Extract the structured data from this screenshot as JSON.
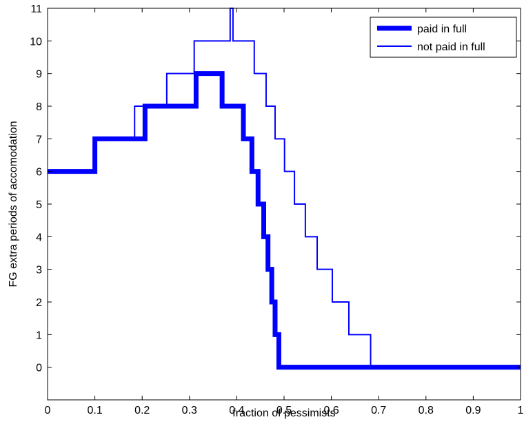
{
  "chart_data": {
    "type": "line",
    "title": "",
    "xlabel": "fraction of pessimists",
    "ylabel": "FG extra periods of accomodation",
    "xlim": [
      0,
      1
    ],
    "ylim": [
      -1,
      11
    ],
    "xticks": [
      0,
      0.1,
      0.2,
      0.3,
      0.4,
      0.5,
      0.6,
      0.7,
      0.8,
      0.9,
      1
    ],
    "xtick_labels": [
      "0",
      "0.1",
      "0.2",
      "0.3",
      "0.4",
      "0.5",
      "0.6",
      "0.7",
      "0.8",
      "0.9",
      "1"
    ],
    "yticks": [
      0,
      1,
      2,
      3,
      4,
      5,
      6,
      7,
      8,
      9,
      10,
      11
    ],
    "ytick_labels": [
      "0",
      "1",
      "2",
      "3",
      "4",
      "5",
      "6",
      "7",
      "8",
      "9",
      "10",
      "11"
    ],
    "grid": false,
    "legend_position": "top-right",
    "step": true,
    "series": [
      {
        "name": "paid in full",
        "color": "#0000ff",
        "line_width": "thick",
        "x": [
          0,
          0.1,
          0.206,
          0.314,
          0.369,
          0.414,
          0.432,
          0.445,
          0.457,
          0.466,
          0.474,
          0.481,
          0.489,
          0.494,
          1.0
        ],
        "y": [
          6,
          7,
          8,
          9,
          8,
          7,
          6,
          5,
          4,
          3,
          2,
          1,
          0,
          0,
          0
        ]
      },
      {
        "name": "not paid in full",
        "color": "#0000ff",
        "line_width": "thin",
        "x": [
          0,
          0.097,
          0.184,
          0.252,
          0.31,
          0.386,
          0.392,
          0.437,
          0.462,
          0.481,
          0.501,
          0.522,
          0.545,
          0.57,
          0.602,
          0.637,
          0.683,
          1.0
        ],
        "y": [
          6,
          7,
          8,
          9,
          10,
          11,
          10,
          9,
          8,
          7,
          6,
          5,
          4,
          3,
          2,
          1,
          0,
          0
        ]
      }
    ]
  }
}
